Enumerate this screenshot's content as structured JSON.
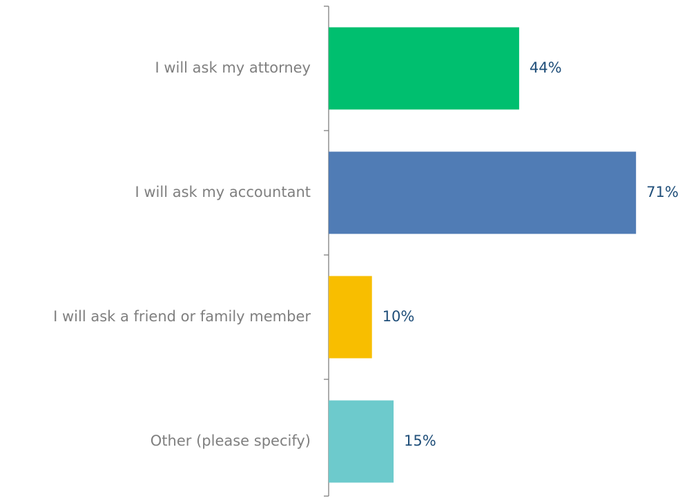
{
  "chart_data": {
    "type": "bar",
    "orientation": "horizontal",
    "categories": [
      "I will ask my attorney",
      "I will ask my accountant",
      "I will ask a friend or family member",
      "Other (please specify)"
    ],
    "values": [
      44,
      71,
      10,
      15
    ],
    "value_labels": [
      "44%",
      "71%",
      "10%",
      "15%"
    ],
    "colors": [
      "#00bf6f",
      "#507cb5",
      "#f8be00",
      "#6dcacc"
    ]
  }
}
